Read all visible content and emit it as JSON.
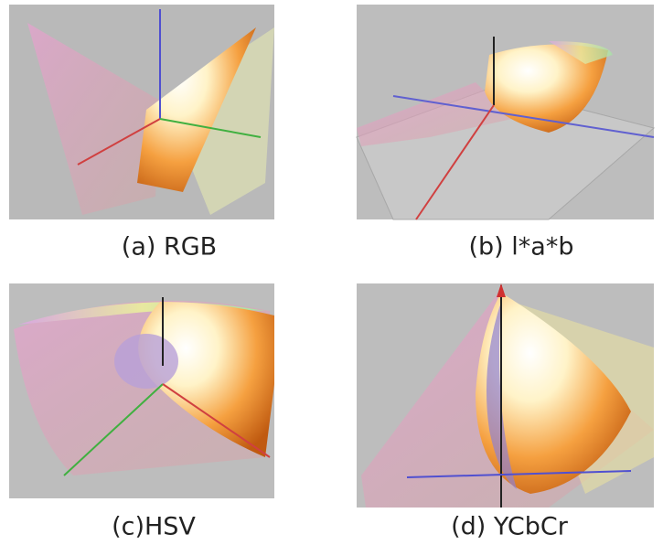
{
  "panels": [
    {
      "caption": "(a) RGB"
    },
    {
      "caption": "(b) l*a*b"
    },
    {
      "caption": "(c)HSV"
    },
    {
      "caption": "(d) YCbCr"
    }
  ]
}
